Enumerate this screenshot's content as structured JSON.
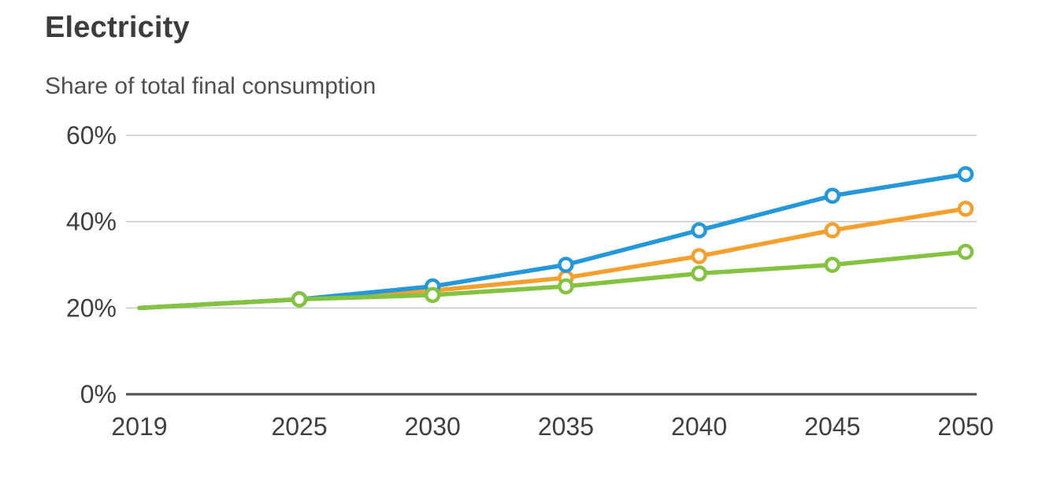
{
  "chart_data": {
    "type": "line",
    "title": "Electricity",
    "subtitle": "Share of total final consumption",
    "x": [
      2019,
      2025,
      2030,
      2035,
      2040,
      2045,
      2050
    ],
    "x_tick_labels": [
      "2019",
      "2025",
      "2030",
      "2035",
      "2040",
      "2045",
      "2050"
    ],
    "y_ticks": [
      {
        "value": 0,
        "label": "0%"
      },
      {
        "value": 20,
        "label": "20%"
      },
      {
        "value": 40,
        "label": "40%"
      },
      {
        "value": 60,
        "label": "60%"
      }
    ],
    "xlim": [
      2019,
      2050
    ],
    "ylim": [
      0,
      60
    ],
    "grid": "horizontal-only",
    "legend_position": "none",
    "series": [
      {
        "name": "orange-series",
        "color": "#f4a02e",
        "values": [
          20,
          22,
          24,
          27,
          32,
          38,
          43
        ]
      },
      {
        "name": "blue-series",
        "color": "#2498d9",
        "values": [
          20,
          22,
          25,
          30,
          38,
          46,
          51
        ]
      },
      {
        "name": "green-series",
        "color": "#84c340",
        "values": [
          20,
          22,
          23,
          25,
          28,
          30,
          33
        ]
      }
    ],
    "marker_style": {
      "shape": "open-circle",
      "fill": "#ffffff",
      "first_point_marker": false
    },
    "colors": {
      "gridline": "#c9c9c9",
      "axis": "#4d4d4d",
      "tick_text": "#3f3f3f",
      "title_text": "#3c3c3c",
      "subtitle_text": "#4f4f4f"
    }
  }
}
